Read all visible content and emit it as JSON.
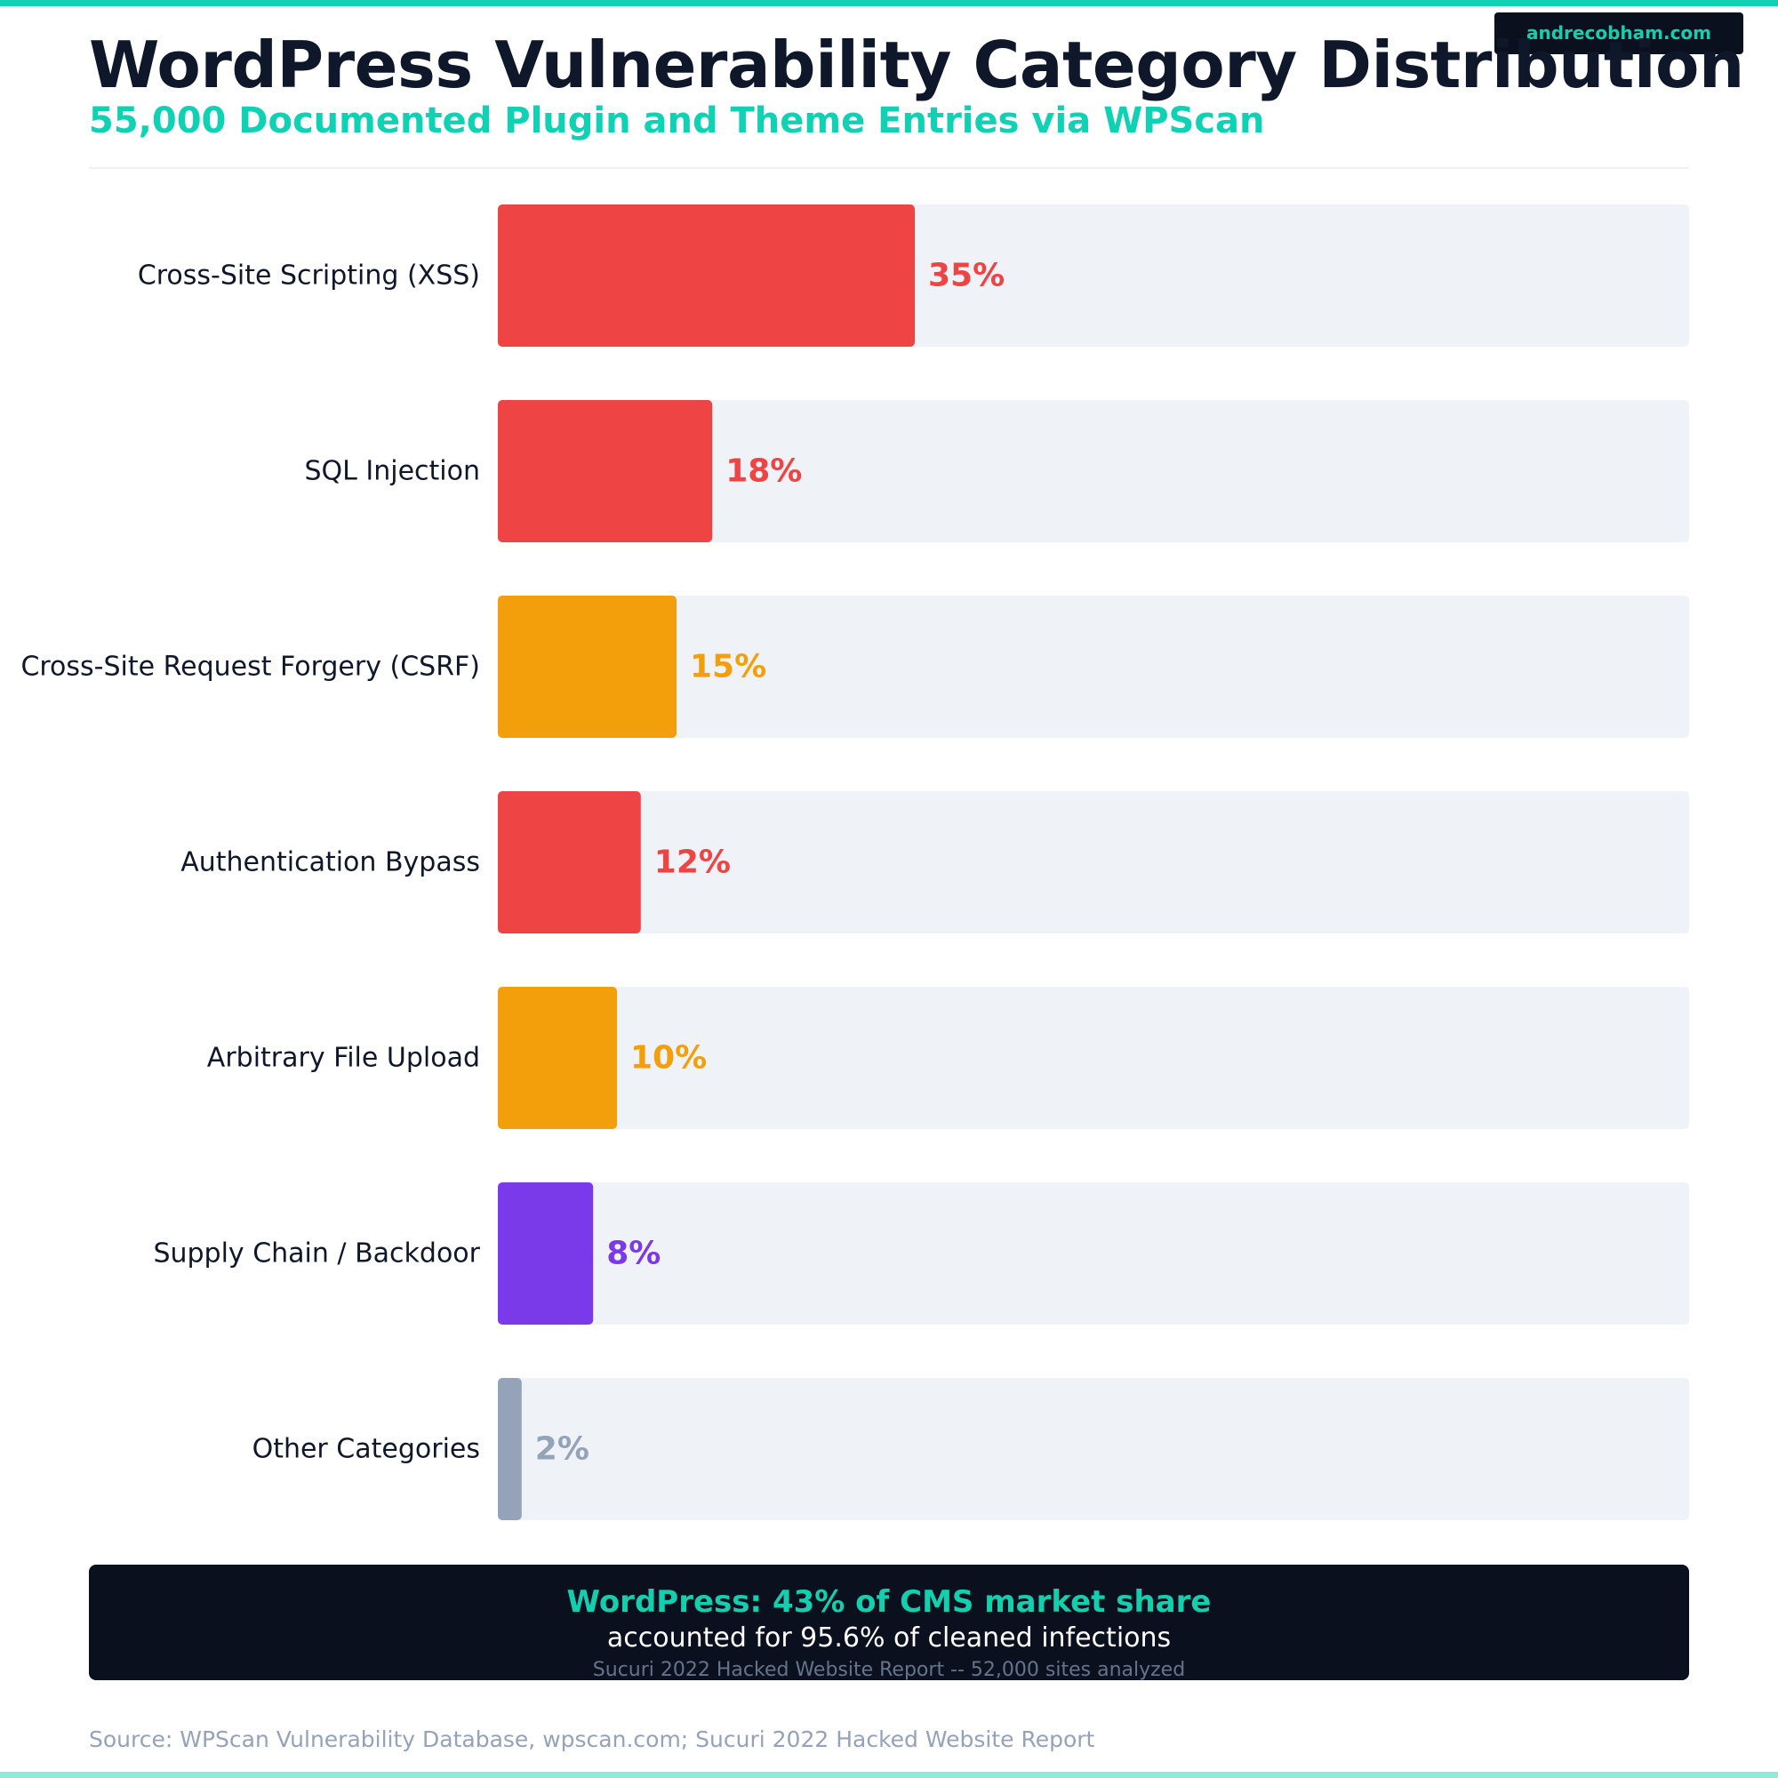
{
  "header": {
    "title": "WordPress Vulnerability Category Distribution",
    "subtitle": "55,000 Documented Plugin and Theme Entries via WPScan",
    "brand": "andrecobham.com"
  },
  "chart_data": {
    "type": "bar",
    "orientation": "horizontal",
    "title": "WordPress Vulnerability Category Distribution",
    "subtitle": "55,000 Documented Plugin and Theme Entries via WPScan",
    "categories": [
      "Cross-Site Scripting (XSS)",
      "SQL Injection",
      "Cross-Site Request Forgery (CSRF)",
      "Authentication Bypass",
      "Arbitrary File Upload",
      "Supply Chain / Backdoor",
      "Other Categories"
    ],
    "values": [
      35,
      18,
      15,
      12,
      10,
      8,
      2
    ],
    "value_labels": [
      "35%",
      "18%",
      "15%",
      "12%",
      "10%",
      "8%",
      "2%"
    ],
    "colors": [
      "#ef4444",
      "#ef4444",
      "#f39f0c",
      "#ef4444",
      "#f39f0c",
      "#7b3aea",
      "#94a3b8"
    ],
    "xlim": [
      0,
      100
    ],
    "track_color": "#eff2f7",
    "grid": false,
    "legend": "none"
  },
  "stats": {
    "headline": "WordPress: 43% of CMS market share",
    "body": "accounted for 95.6% of cleaned infections",
    "note": "Sucuri 2022 Hacked Website Report -- 52,000 sites analyzed"
  },
  "footer": {
    "source": "Source: WPScan Vulnerability Database, wpscan.com; Sucuri 2022 Hacked Website Report"
  }
}
